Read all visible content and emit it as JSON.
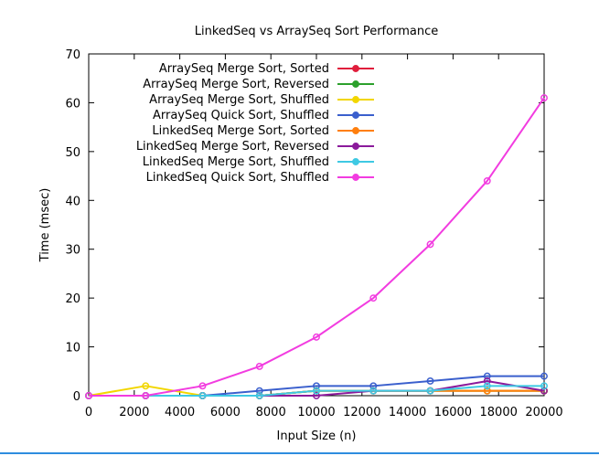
{
  "chart_data": {
    "type": "line",
    "title": "LinkedSeq vs ArraySeq Sort Performance",
    "xlabel": "Input Size (n)",
    "ylabel": "Time (msec)",
    "xlim": [
      0,
      20000
    ],
    "ylim": [
      0,
      70
    ],
    "x_ticks": [
      "0",
      "2000",
      "4000",
      "6000",
      "8000",
      "10000",
      "12000",
      "14000",
      "16000",
      "18000",
      "20000"
    ],
    "y_ticks": [
      "0",
      "10",
      "20",
      "30",
      "40",
      "50",
      "60",
      "70"
    ],
    "grid": false,
    "legend_position": "top-left",
    "x": [
      0,
      2500,
      5000,
      7500,
      10000,
      12500,
      15000,
      17500,
      20000
    ],
    "series": [
      {
        "name": "ArraySeq Merge Sort, Sorted",
        "color": "#e01e3c",
        "values": [
          0,
          0,
          0,
          0,
          1,
          1,
          1,
          1,
          1
        ]
      },
      {
        "name": "ArraySeq Merge Sort, Reversed",
        "color": "#2ca02c",
        "values": [
          0,
          0,
          0,
          0,
          1,
          1,
          1,
          1,
          1
        ]
      },
      {
        "name": "ArraySeq Merge Sort, Shuffled",
        "color": "#f2d600",
        "values": [
          0,
          2,
          0,
          0,
          1,
          1,
          1,
          1,
          1
        ]
      },
      {
        "name": "ArraySeq Quick Sort, Shuffled",
        "color": "#3a5fcd",
        "values": [
          0,
          0,
          0,
          1,
          2,
          2,
          3,
          4,
          4
        ]
      },
      {
        "name": "LinkedSeq Merge Sort, Sorted",
        "color": "#ff7f0e",
        "values": [
          0,
          0,
          0,
          0,
          1,
          1,
          1,
          1,
          1
        ]
      },
      {
        "name": "LinkedSeq Merge Sort, Reversed",
        "color": "#8b1a9b",
        "values": [
          0,
          0,
          0,
          0,
          0,
          1,
          1,
          3,
          1
        ]
      },
      {
        "name": "LinkedSeq Merge Sort, Shuffled",
        "color": "#3ec9e3",
        "values": [
          0,
          0,
          0,
          0,
          1,
          1,
          1,
          2,
          2
        ]
      },
      {
        "name": "LinkedSeq Quick Sort, Shuffled",
        "color": "#f23ce0",
        "values": [
          0,
          0,
          2,
          6,
          12,
          20,
          31,
          44,
          61
        ]
      }
    ]
  }
}
